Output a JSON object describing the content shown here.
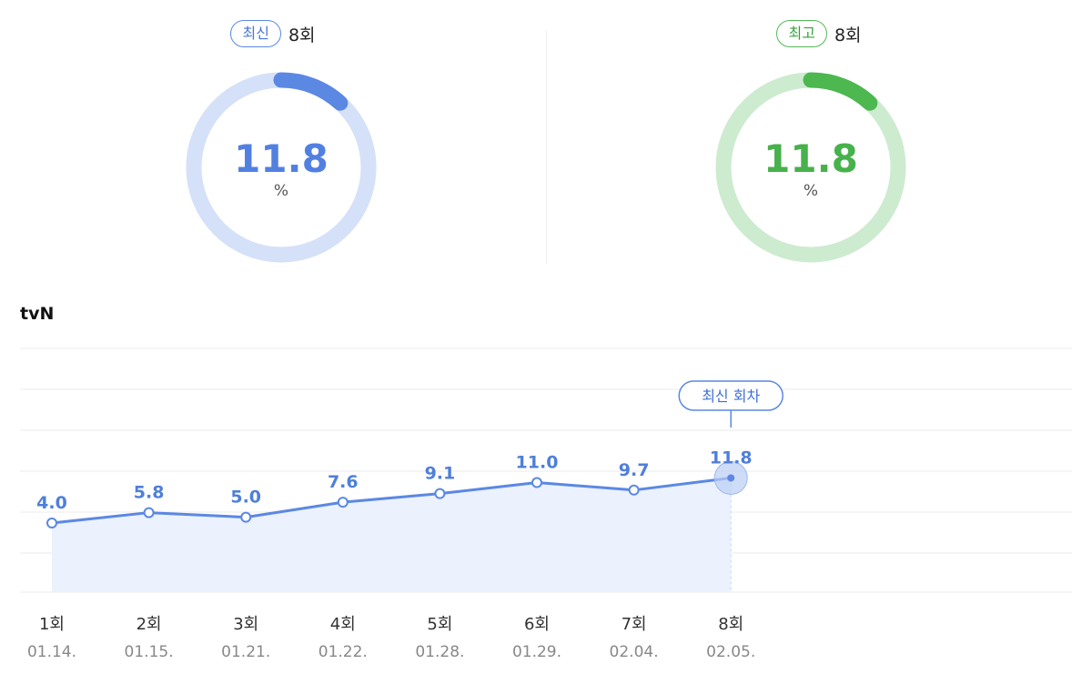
{
  "gauges": {
    "latest": {
      "badge": "최신",
      "episode": "8회",
      "value": "11.8",
      "unit": "%",
      "fraction": 0.118,
      "color": "#5b88e3",
      "track": "#d5e1f8"
    },
    "best": {
      "badge": "최고",
      "episode": "8회",
      "value": "11.8",
      "unit": "%",
      "fraction": 0.118,
      "color": "#4cb84f",
      "track": "#cdebcf"
    }
  },
  "channel": "tvN",
  "latest_tag": "최신 회차",
  "colors": {
    "line": "#5b88e3",
    "fill": "#ebf1fd",
    "label": "#4f7fd9",
    "grid": "#ebebeb"
  },
  "chart_data": {
    "type": "area",
    "categories": [
      "1회",
      "2회",
      "3회",
      "4회",
      "5회",
      "6회",
      "7회",
      "8회"
    ],
    "dates": [
      "01.14.",
      "01.15.",
      "01.21.",
      "01.22.",
      "01.28.",
      "01.29.",
      "02.04.",
      "02.05."
    ],
    "values": [
      4.0,
      5.8,
      5.0,
      7.6,
      9.1,
      11.0,
      9.7,
      11.8
    ],
    "labels": [
      "4.0",
      "5.8",
      "5.0",
      "7.6",
      "9.1",
      "11.0",
      "9.7",
      "11.8"
    ],
    "highlight_index": 7,
    "title": "",
    "xlabel": "",
    "ylabel": "",
    "grid": true,
    "legend": "none"
  }
}
